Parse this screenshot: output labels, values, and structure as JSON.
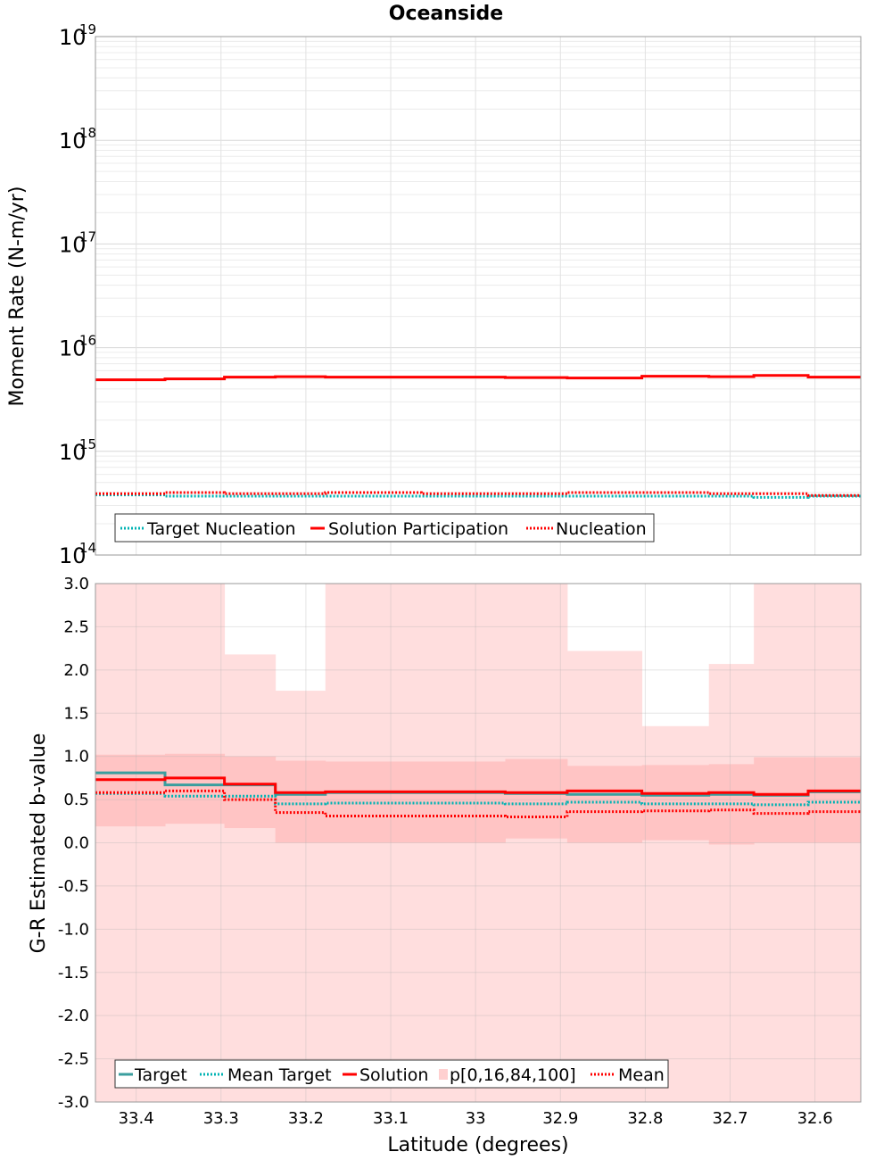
{
  "chart_data": [
    {
      "type": "line",
      "title": "Oceanside",
      "ylabel": "Moment Rate (N-m/yr)",
      "xlabel": "",
      "yscale": "log",
      "ylim": [
        100000000000000.0,
        1e+19
      ],
      "xlim": [
        33.448,
        32.546
      ],
      "y_ticks": [
        {
          "base": "10",
          "exp": "14",
          "value": 100000000000000.0
        },
        {
          "base": "10",
          "exp": "15",
          "value": 1000000000000000.0
        },
        {
          "base": "10",
          "exp": "16",
          "value": 1e+16
        },
        {
          "base": "10",
          "exp": "17",
          "value": 1e+17
        },
        {
          "base": "10",
          "exp": "18",
          "value": 1e+18
        },
        {
          "base": "10",
          "exp": "19",
          "value": 1e+19
        }
      ],
      "bin_edges": [
        33.448,
        33.366,
        33.296,
        33.236,
        33.177,
        33.064,
        32.965,
        32.892,
        32.804,
        32.725,
        32.672,
        32.608,
        32.546
      ],
      "series": [
        {
          "name": "Target Nucleation",
          "style": "dotted",
          "color": "#00b3b3",
          "values": [
            380000000000000.0,
            370000000000000.0,
            370000000000000.0,
            370000000000000.0,
            370000000000000.0,
            370000000000000.0,
            370000000000000.0,
            370000000000000.0,
            370000000000000.0,
            370000000000000.0,
            360000000000000.0,
            370000000000000.0
          ]
        },
        {
          "name": "Solution Participation",
          "style": "solid",
          "color": "#ff0000",
          "values": [
            4900000000000000.0,
            5000000000000000.0,
            5200000000000000.0,
            5250000000000000.0,
            5200000000000000.0,
            5200000000000000.0,
            5150000000000000.0,
            5100000000000000.0,
            5300000000000000.0,
            5250000000000000.0,
            5400000000000000.0,
            5200000000000000.0,
            5100000000000000.0
          ]
        },
        {
          "name": "Nucleation",
          "style": "dotted",
          "color": "#ff0000",
          "values": [
            390000000000000.0,
            400000000000000.0,
            390000000000000.0,
            390000000000000.0,
            400000000000000.0,
            390000000000000.0,
            390000000000000.0,
            400000000000000.0,
            400000000000000.0,
            390000000000000.0,
            390000000000000.0,
            375000000000000.0
          ]
        }
      ],
      "legend": [
        "Target Nucleation",
        "Solution Participation",
        "Nucleation"
      ],
      "legend_position": "bottom-left"
    },
    {
      "type": "line",
      "title": "",
      "ylabel": "G-R Estimated b-value",
      "xlabel": "Latitude (degrees)",
      "ylim": [
        -3.0,
        3.0
      ],
      "xlim": [
        33.448,
        32.546
      ],
      "y_ticks": [
        "-3.0",
        "-2.5",
        "-2.0",
        "-1.5",
        "-1.0",
        "-0.5",
        "0.0",
        "0.5",
        "1.0",
        "1.5",
        "2.0",
        "2.5",
        "3.0"
      ],
      "x_ticks": [
        "33.4",
        "33.3",
        "33.2",
        "33.1",
        "33",
        "32.9",
        "32.8",
        "32.7",
        "32.6"
      ],
      "x_tick_values": [
        33.4,
        33.3,
        33.2,
        33.1,
        33.0,
        32.9,
        32.8,
        32.7,
        32.6
      ],
      "bin_edges": [
        33.448,
        33.366,
        33.296,
        33.236,
        33.177,
        33.064,
        32.965,
        32.892,
        32.804,
        32.725,
        32.672,
        32.608,
        32.546
      ],
      "p0": [
        -3.0,
        -3.0,
        -3.0,
        -3.0,
        -3.0,
        -3.0,
        -3.0,
        -3.0,
        -3.0,
        -3.0,
        -3.0,
        -3.0
      ],
      "p16": [
        0.19,
        0.22,
        0.17,
        0.0,
        0.0,
        0.0,
        0.05,
        0.0,
        0.03,
        -0.02,
        0.0,
        0.0
      ],
      "p84": [
        1.02,
        1.03,
        1.0,
        0.95,
        0.94,
        0.94,
        0.97,
        0.89,
        0.9,
        0.91,
        0.99,
        0.99
      ],
      "p100": [
        3.0,
        3.0,
        2.18,
        1.76,
        3.0,
        3.0,
        3.0,
        2.22,
        1.35,
        2.07,
        3.0,
        3.0
      ],
      "series": [
        {
          "name": "Target",
          "style": "solid",
          "color": "#3a9e9e",
          "values": [
            0.81,
            0.67,
            0.67,
            0.56,
            0.58,
            0.58,
            0.57,
            0.56,
            0.55,
            0.56,
            0.55,
            0.59,
            0.57
          ]
        },
        {
          "name": "Mean Target",
          "style": "dotted",
          "color": "#00b3b3",
          "values": [
            0.57,
            0.54,
            0.54,
            0.45,
            0.46,
            0.46,
            0.45,
            0.47,
            0.45,
            0.45,
            0.44,
            0.47,
            0.47
          ]
        },
        {
          "name": "Solution",
          "style": "solid",
          "color": "#ff0000",
          "values": [
            0.73,
            0.75,
            0.68,
            0.58,
            0.59,
            0.59,
            0.58,
            0.6,
            0.57,
            0.58,
            0.56,
            0.6,
            0.58
          ]
        },
        {
          "name": "p[0,16,84,100]",
          "style": "band",
          "color": "#ffc8c8"
        },
        {
          "name": "Mean",
          "style": "dotted",
          "color": "#ff0000",
          "values": [
            0.58,
            0.6,
            0.5,
            0.35,
            0.31,
            0.31,
            0.3,
            0.36,
            0.37,
            0.38,
            0.34,
            0.36,
            0.36
          ]
        }
      ],
      "legend": [
        "Target",
        "Mean Target",
        "Solution",
        "p[0,16,84,100]",
        "Mean"
      ],
      "legend_position": "bottom-left"
    }
  ]
}
